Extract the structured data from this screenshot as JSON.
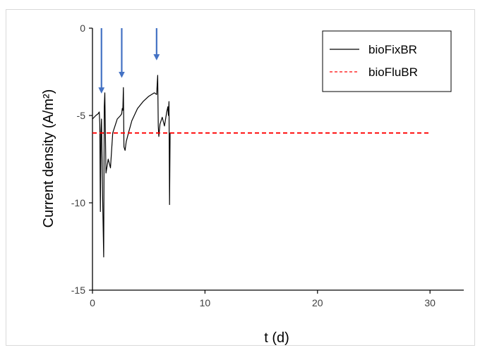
{
  "chart_data": {
    "type": "line",
    "xlabel": "t (d)",
    "ylabel": "Current density (A/m²)",
    "xlim": [
      0,
      33
    ],
    "ylim": [
      -15,
      0
    ],
    "x_ticks": [
      0,
      10,
      20,
      30
    ],
    "y_ticks": [
      0,
      -5,
      -10,
      -15
    ],
    "x_tick_labels": [
      "0",
      "10",
      "20",
      "30"
    ],
    "y_tick_labels": [
      "0",
      "-5",
      "-10",
      "-15"
    ],
    "grid": false,
    "legend_position": "top-right",
    "series": [
      {
        "name": "bioFixBR",
        "color": "#000000",
        "style": "solid",
        "x": [
          0.0,
          0.3,
          0.5,
          0.6,
          0.65,
          0.7,
          0.75,
          0.8,
          0.9,
          1.0,
          1.05,
          1.1,
          1.2,
          1.4,
          1.6,
          1.8,
          2.0,
          2.2,
          2.5,
          2.6,
          2.65,
          2.7,
          2.75,
          2.8,
          2.9,
          3.0,
          3.2,
          3.5,
          4.0,
          4.5,
          5.0,
          5.5,
          5.7,
          5.8,
          5.85,
          5.9,
          6.0,
          6.2,
          6.4,
          6.6,
          6.7,
          6.75,
          6.8,
          6.85,
          6.9,
          6.95,
          7.0
        ],
        "y": [
          -5.2,
          -5.0,
          -4.9,
          -4.8,
          -5.5,
          -10.5,
          -6.0,
          -5.2,
          -9.5,
          -13.1,
          -4.5,
          -3.7,
          -8.3,
          -7.5,
          -8.0,
          -6.0,
          -5.6,
          -5.2,
          -5.0,
          -4.9,
          -4.6,
          -4.7,
          -3.4,
          -6.8,
          -7.0,
          -6.5,
          -6.0,
          -5.3,
          -4.6,
          -4.2,
          -3.9,
          -3.7,
          -3.8,
          -2.7,
          -5.6,
          -6.2,
          -5.5,
          -5.1,
          -5.6,
          -4.8,
          -4.5,
          -5.0,
          -4.2,
          -10.1,
          -6.0,
          -6.0,
          -6.0
        ]
      },
      {
        "name": "bioFluBR",
        "color": "#ff0000",
        "style": "dashed",
        "x": [
          0,
          30
        ],
        "y": [
          -6,
          -6
        ]
      }
    ],
    "annotations": [
      {
        "type": "arrow",
        "x": 0.8,
        "y_from": 0,
        "y_to": -3.9,
        "color": "#4472c4"
      },
      {
        "type": "arrow",
        "x": 2.6,
        "y_from": 0,
        "y_to": -3.0,
        "color": "#4472c4"
      },
      {
        "type": "arrow",
        "x": 5.7,
        "y_from": 0,
        "y_to": -2.0,
        "color": "#4472c4"
      }
    ]
  }
}
